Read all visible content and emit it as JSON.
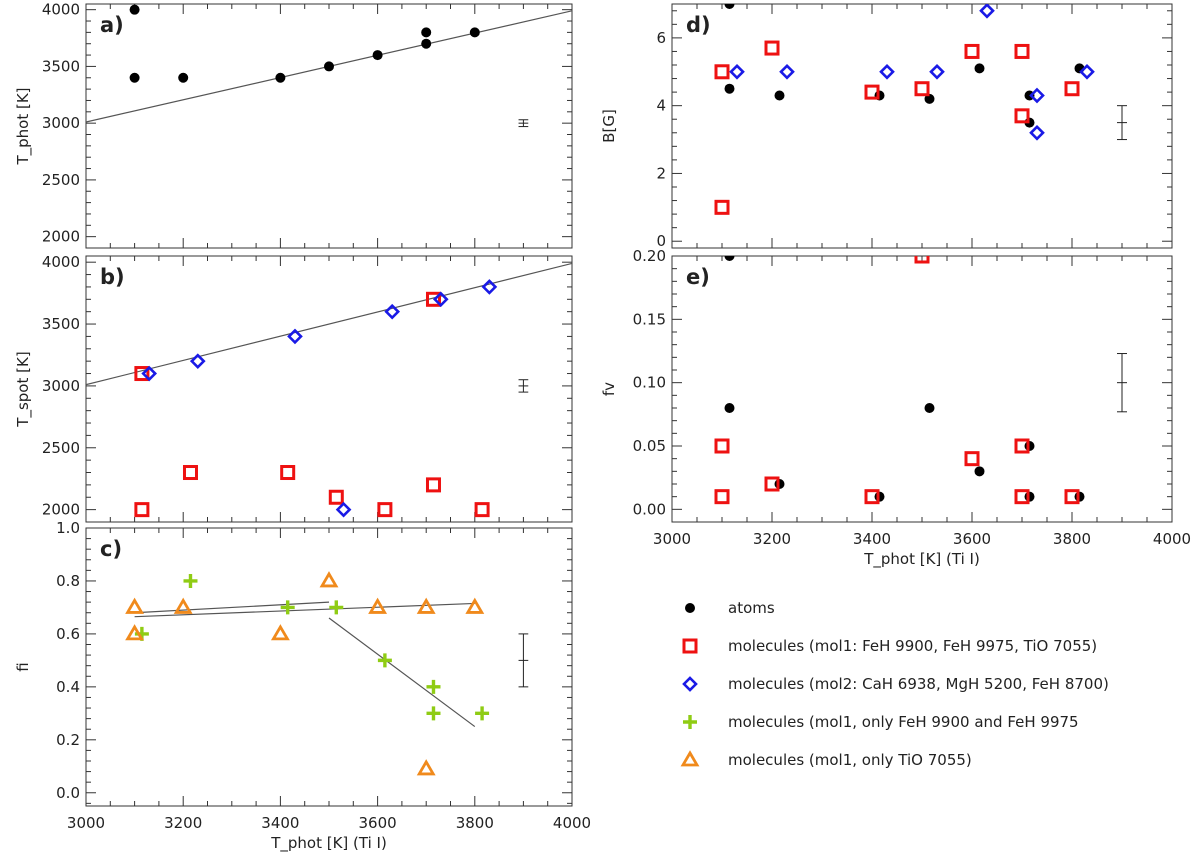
{
  "colors": {
    "atoms": "#000000",
    "mol1": "#ee1111",
    "mol2": "#1a1ae6",
    "feh": "#8fcc14",
    "tio": "#f08a1c",
    "fit": "#555555",
    "axis": "#333333"
  },
  "legend": [
    {
      "key": "atoms",
      "label": "atoms",
      "marker": "circle"
    },
    {
      "key": "mol1",
      "label": "molecules (mol1: FeH 9900, FeH 9975, TiO 7055)",
      "marker": "square"
    },
    {
      "key": "mol2",
      "label": "molecules (mol2: CaH 6938, MgH 5200, FeH 8700)",
      "marker": "diamond"
    },
    {
      "key": "feh",
      "label": "molecules (mol1, only FeH 9900 and FeH 9975",
      "marker": "plus"
    },
    {
      "key": "tio",
      "label": "molecules (mol1, only TiO 7055)",
      "marker": "triangle"
    }
  ],
  "chart_data": [
    {
      "id": "a",
      "type": "scatter",
      "panel_label": "a)",
      "ylabel": "T_phot [K]",
      "xlabel": "",
      "xlim": [
        3000,
        4000
      ],
      "ylim": [
        1900,
        4050
      ],
      "yticks": [
        2000,
        2500,
        3000,
        3500,
        4000
      ],
      "xticks": [
        3000,
        3200,
        3400,
        3600,
        3800,
        4000
      ],
      "show_xtick_labels": false,
      "series": [
        {
          "key": "atoms",
          "marker": "circle",
          "x": [
            3100,
            3100,
            3200,
            3400,
            3500,
            3600,
            3700,
            3700,
            3800
          ],
          "y": [
            4000,
            3400,
            3400,
            3400,
            3500,
            3600,
            3800,
            3700,
            3800
          ]
        }
      ],
      "fit_lines": [
        {
          "x": [
            3000,
            4000
          ],
          "y": [
            3010,
            3990
          ]
        }
      ],
      "error_bar": {
        "x": 3900,
        "y": 3000,
        "dy": 30,
        "dx": 10
      }
    },
    {
      "id": "b",
      "type": "scatter",
      "panel_label": "b)",
      "ylabel": "T_spot [K]",
      "xlabel": "",
      "xlim": [
        3000,
        4000
      ],
      "ylim": [
        1900,
        4050
      ],
      "yticks": [
        2000,
        2500,
        3000,
        3500,
        4000
      ],
      "xticks": [
        3000,
        3200,
        3400,
        3600,
        3800,
        4000
      ],
      "show_xtick_labels": false,
      "series": [
        {
          "key": "mol1",
          "marker": "square",
          "x": [
            3115,
            3115,
            3215,
            3415,
            3515,
            3615,
            3715,
            3715,
            3815
          ],
          "y": [
            3100,
            2000,
            2300,
            2300,
            2100,
            2000,
            3700,
            2200,
            2000
          ]
        },
        {
          "key": "mol2",
          "marker": "diamond",
          "x": [
            3130,
            3230,
            3430,
            3530,
            3630,
            3730,
            3830
          ],
          "y": [
            3100,
            3200,
            3400,
            2000,
            3600,
            3700,
            3800
          ]
        }
      ],
      "fit_lines": [
        {
          "x": [
            3000,
            4000
          ],
          "y": [
            3010,
            3990
          ]
        }
      ],
      "error_bar": {
        "x": 3900,
        "y": 3000,
        "dy": 50,
        "dx": 10
      }
    },
    {
      "id": "c",
      "type": "scatter",
      "panel_label": "c)",
      "ylabel": "fi",
      "xlabel": "T_phot [K] (Ti I)",
      "xlim": [
        3000,
        4000
      ],
      "ylim": [
        -0.05,
        1.0
      ],
      "yticks": [
        0.0,
        0.2,
        0.4,
        0.6,
        0.8,
        1.0
      ],
      "ytick_labels": [
        "0.0",
        "0.2",
        "0.4",
        "0.6",
        "0.8",
        "1.0"
      ],
      "xticks": [
        3000,
        3200,
        3400,
        3600,
        3800,
        4000
      ],
      "show_xtick_labels": true,
      "series": [
        {
          "key": "feh",
          "marker": "plus",
          "x": [
            3115,
            3215,
            3415,
            3515,
            3615,
            3715,
            3715,
            3815
          ],
          "y": [
            0.6,
            0.8,
            0.7,
            0.7,
            0.5,
            0.4,
            0.3,
            0.3
          ]
        },
        {
          "key": "tio",
          "marker": "triangle",
          "x": [
            3100,
            3100,
            3200,
            3400,
            3500,
            3600,
            3700,
            3700,
            3800
          ],
          "y": [
            0.7,
            0.6,
            0.7,
            0.6,
            0.8,
            0.7,
            0.7,
            0.09,
            0.7
          ]
        }
      ],
      "fit_lines": [
        {
          "x": [
            3100,
            3500
          ],
          "y": [
            0.68,
            0.72
          ]
        },
        {
          "x": [
            3100,
            3800
          ],
          "y": [
            0.665,
            0.715
          ]
        },
        {
          "x": [
            3500,
            3800
          ],
          "y": [
            0.66,
            0.25
          ]
        }
      ],
      "error_bar": {
        "x": 3900,
        "y": 0.5,
        "dy": 0.1,
        "dx": 10
      }
    },
    {
      "id": "d",
      "type": "scatter",
      "panel_label": "d)",
      "ylabel": "B[G]",
      "xlabel": "",
      "xlim": [
        3000,
        4000
      ],
      "ylim": [
        -0.2,
        7.0
      ],
      "yticks": [
        0,
        2,
        4,
        6
      ],
      "xticks": [
        3000,
        3200,
        3400,
        3600,
        3800,
        4000
      ],
      "show_xtick_labels": false,
      "series": [
        {
          "key": "atoms",
          "marker": "circle",
          "x": [
            3115,
            3115,
            3215,
            3415,
            3515,
            3615,
            3715,
            3715,
            3815
          ],
          "y": [
            7.0,
            4.5,
            4.3,
            4.3,
            4.2,
            5.1,
            4.3,
            3.5,
            5.1
          ]
        },
        {
          "key": "mol1",
          "marker": "square",
          "x": [
            3100,
            3100,
            3200,
            3400,
            3500,
            3600,
            3700,
            3700,
            3800
          ],
          "y": [
            5.0,
            1.0,
            5.7,
            4.4,
            4.5,
            5.6,
            5.6,
            3.7,
            4.5
          ]
        },
        {
          "key": "mol2",
          "marker": "diamond",
          "x": [
            3130,
            3230,
            3430,
            3530,
            3630,
            3730,
            3730,
            3830
          ],
          "y": [
            5.0,
            5.0,
            5.0,
            5.0,
            6.8,
            4.3,
            3.2,
            5.0
          ]
        }
      ],
      "fit_lines": [],
      "error_bar": {
        "x": 3900,
        "y": 3.5,
        "dy": 0.5,
        "dx": 10
      }
    },
    {
      "id": "e",
      "type": "scatter",
      "panel_label": "e)",
      "ylabel": "fv",
      "xlabel": "T_phot [K] (Ti I)",
      "xlim": [
        3000,
        4000
      ],
      "ylim": [
        -0.01,
        0.2
      ],
      "yticks": [
        0.0,
        0.05,
        0.1,
        0.15,
        0.2
      ],
      "ytick_labels": [
        "0.00",
        "0.05",
        "0.10",
        "0.15",
        "0.20"
      ],
      "xticks": [
        3000,
        3200,
        3400,
        3600,
        3800,
        4000
      ],
      "show_xtick_labels": true,
      "series": [
        {
          "key": "atoms",
          "marker": "circle",
          "x": [
            3115,
            3115,
            3215,
            3415,
            3515,
            3615,
            3715,
            3715,
            3815
          ],
          "y": [
            0.2,
            0.08,
            0.02,
            0.01,
            0.08,
            0.03,
            0.05,
            0.01,
            0.01
          ]
        },
        {
          "key": "mol1",
          "marker": "square",
          "x": [
            3100,
            3100,
            3200,
            3400,
            3500,
            3600,
            3700,
            3700,
            3800
          ],
          "y": [
            0.05,
            0.01,
            0.02,
            0.01,
            0.2,
            0.04,
            0.05,
            0.01,
            0.01
          ]
        }
      ],
      "fit_lines": [],
      "error_bar": {
        "x": 3900,
        "y": 0.1,
        "dy": 0.023,
        "dx": 10
      }
    }
  ]
}
